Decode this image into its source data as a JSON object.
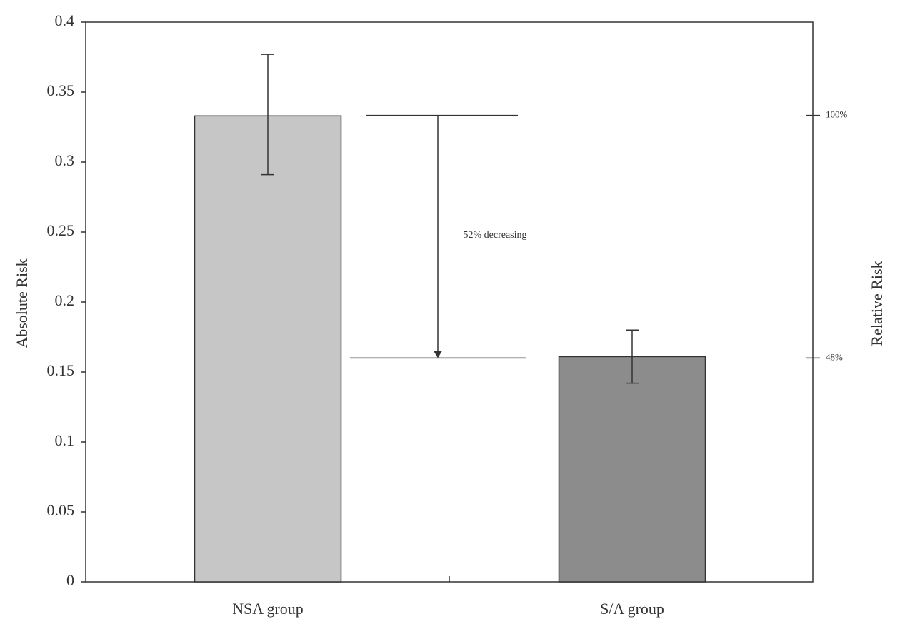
{
  "chart_data": {
    "type": "bar",
    "categories": [
      "NSA group",
      "S/A group"
    ],
    "values": [
      0.333,
      0.161
    ],
    "error_low": [
      0.291,
      0.142
    ],
    "error_high": [
      0.377,
      0.18
    ],
    "colors": [
      "#c6c6c6",
      "#8c8c8c"
    ],
    "ylabel": "Absolute Risk",
    "y2label": "Relative Risk",
    "ylim": [
      0,
      0.4
    ],
    "yticks": [
      0,
      0.05,
      0.1,
      0.15,
      0.2,
      0.25,
      0.3,
      0.35,
      0.4
    ],
    "y2lim": [
      0,
      120
    ],
    "y2ticks": [
      {
        "value": 100,
        "label": "100%"
      },
      {
        "value": 48,
        "label": "48%"
      }
    ],
    "annotation": "52% decreasing"
  }
}
